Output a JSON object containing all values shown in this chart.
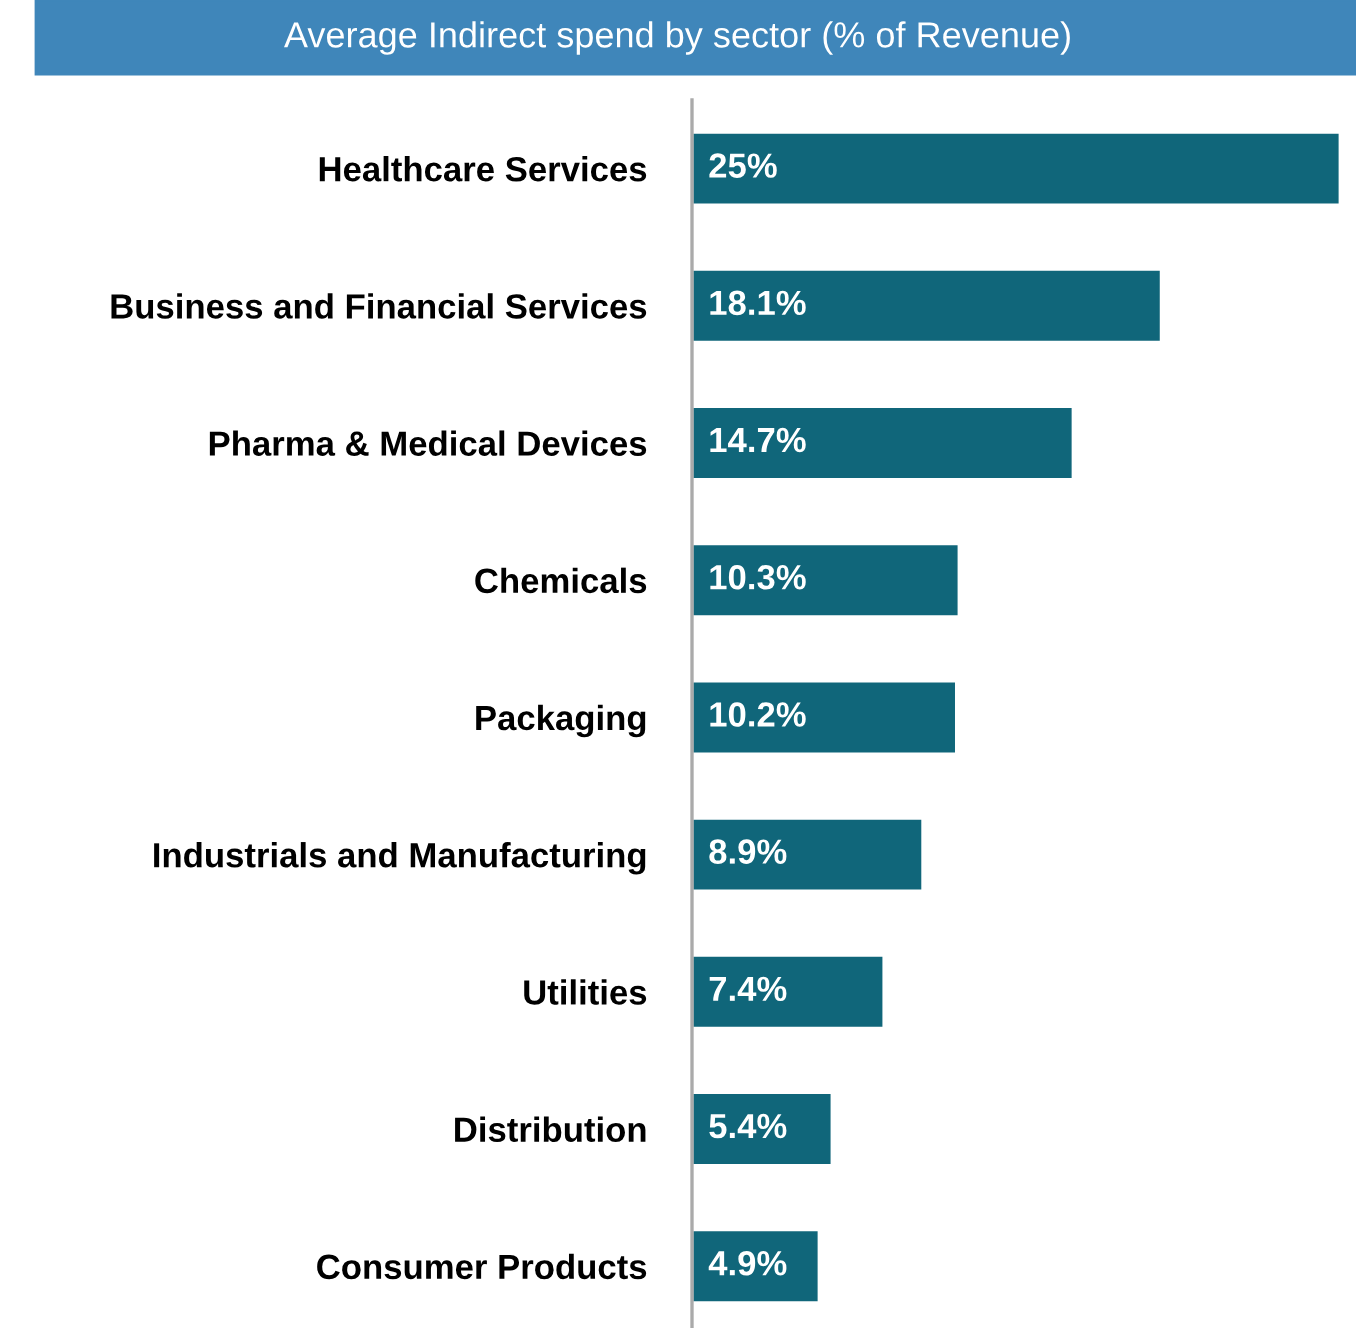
{
  "chart_data": {
    "type": "bar",
    "orientation": "horizontal",
    "title": "Average Indirect spend by sector (% of Revenue)",
    "categories": [
      "Healthcare Services",
      "Business and Financial Services",
      "Pharma & Medical Devices",
      "Chemicals",
      "Packaging",
      "Industrials and Manufacturing",
      "Utilities",
      "Distribution",
      "Consumer Products"
    ],
    "values": [
      25,
      18.1,
      14.7,
      10.3,
      10.2,
      8.9,
      7.4,
      5.4,
      4.9
    ],
    "value_labels": [
      "25%",
      "18.1%",
      "14.7%",
      "10.3%",
      "10.2%",
      "8.9%",
      "7.4%",
      "5.4%",
      "4.9%"
    ],
    "color": "#10667a",
    "grid": false,
    "legend": false
  }
}
